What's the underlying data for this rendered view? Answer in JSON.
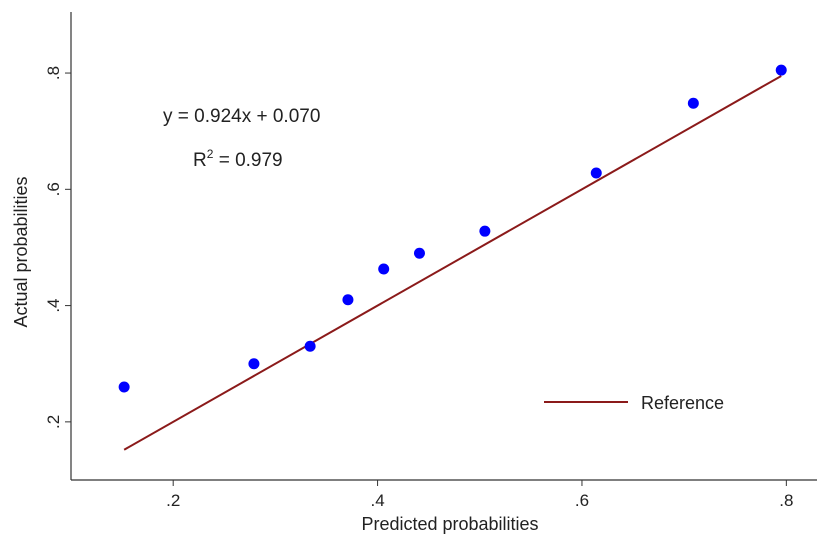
{
  "chart_data": {
    "type": "scatter",
    "xlabel": "Predicted probabilities",
    "ylabel": "Actual probabilities",
    "xlim": [
      0.1,
      0.83
    ],
    "ylim": [
      0.1,
      0.905
    ],
    "x_ticks": [
      0.2,
      0.4,
      0.6,
      0.8
    ],
    "x_tick_labels": [
      ".2",
      ".4",
      ".6",
      ".8"
    ],
    "y_ticks": [
      0.2,
      0.4,
      0.6,
      0.8
    ],
    "y_tick_labels": [
      ".2",
      ".4",
      ".6",
      ".8"
    ],
    "grid": false,
    "points_color": "#0000ff",
    "reference_color": "#8b1a1a",
    "series": [
      {
        "name": "",
        "x": [
          0.152,
          0.279,
          0.334,
          0.371,
          0.406,
          0.441,
          0.505,
          0.614,
          0.709,
          0.795
        ],
        "y": [
          0.26,
          0.3,
          0.33,
          0.41,
          0.463,
          0.49,
          0.528,
          0.628,
          0.748,
          0.805
        ]
      }
    ],
    "reference_line": {
      "name": "Reference",
      "x": [
        0.152,
        0.795
      ],
      "y": [
        0.152,
        0.795
      ]
    },
    "legend": {
      "position": "bottom-right",
      "entries": [
        "Reference"
      ]
    },
    "annotations": {
      "equation": "y = 0.924x + 0.070",
      "r2_prefix": "R",
      "r2_superscript": "2",
      "r2_value": " = 0.979"
    }
  }
}
